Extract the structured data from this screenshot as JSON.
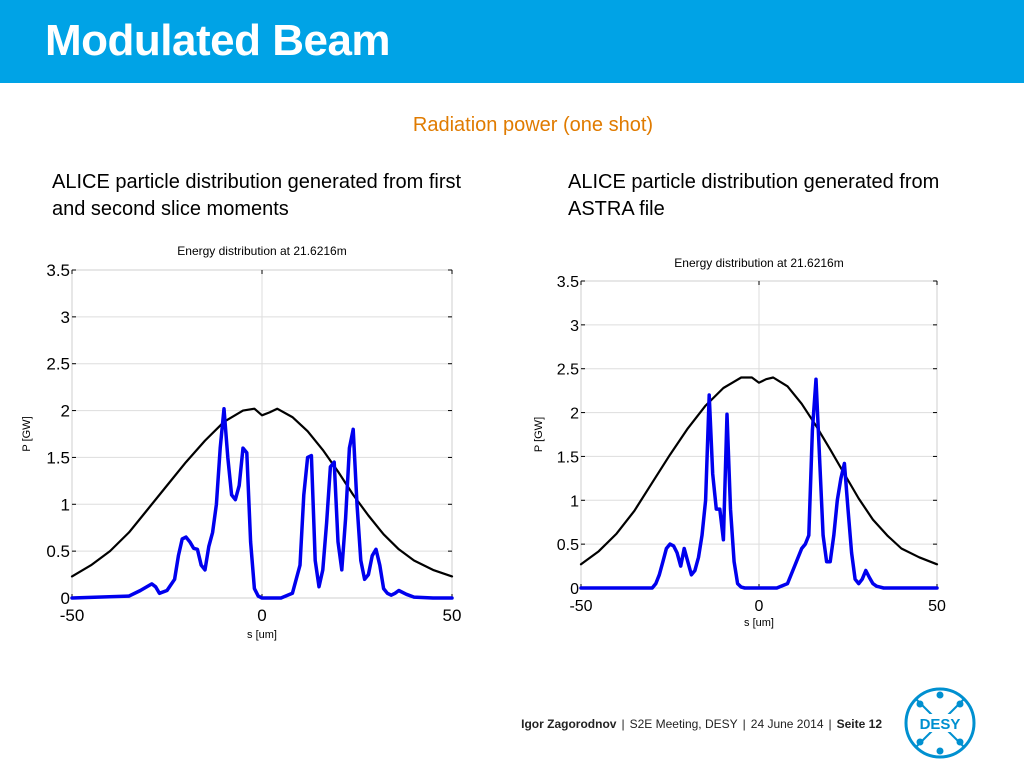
{
  "slide": {
    "title": "Modulated Beam",
    "subtitle": "Radiation power (one shot)",
    "left_caption": "ALICE particle distribution generated from first and second slice moments",
    "right_caption": "ALICE particle distribution generated from ASTRA file"
  },
  "colors": {
    "header": "#00a3e6",
    "subtitle": "#e07b00",
    "envelope": "#000000",
    "power": "#0000ee",
    "logo": "#0090d0"
  },
  "footer": {
    "author": "Igor Zagorodnov",
    "event": "S2E  Meeting, DESY",
    "date": "24 June 2014",
    "page": "Seite 12",
    "separator": "|"
  },
  "logo": {
    "text": "DESY",
    "icon": "desy-logo-icon"
  },
  "chart_data": [
    {
      "type": "line",
      "title": "Energy distribution at 21.6216m",
      "xlabel": "s [um]",
      "ylabel": "P [GW]",
      "xlim": [
        -50,
        50
      ],
      "ylim": [
        0,
        3.5
      ],
      "xticks": [
        "-50",
        "0",
        "50"
      ],
      "yticks": [
        "0",
        "0.5",
        "1",
        "1.5",
        "2",
        "2.5",
        "3",
        "3.5"
      ],
      "grid": true,
      "series": [
        {
          "color": "#000000",
          "x": [
            -50,
            -45,
            -40,
            -35,
            -30,
            -25,
            -20,
            -15,
            -10,
            -5,
            -2,
            0,
            2,
            4,
            8,
            12,
            16,
            20,
            24,
            28,
            32,
            36,
            40,
            45,
            50
          ],
          "y": [
            0.23,
            0.35,
            0.5,
            0.7,
            0.95,
            1.2,
            1.45,
            1.68,
            1.88,
            2.0,
            2.02,
            1.95,
            1.98,
            2.02,
            1.93,
            1.78,
            1.58,
            1.35,
            1.1,
            0.88,
            0.68,
            0.52,
            0.4,
            0.3,
            0.23
          ]
        },
        {
          "color": "#0000ee",
          "x": [
            -50,
            -35,
            -32,
            -29,
            -28,
            -27,
            -25,
            -23,
            -22,
            -21,
            -20,
            -19,
            -18,
            -17,
            -16,
            -15,
            -14,
            -13,
            -12,
            -11,
            -10,
            -9,
            -8,
            -7,
            -6,
            -5,
            -4,
            -3,
            -2,
            -1,
            0,
            1,
            2,
            5,
            8,
            10,
            11,
            12,
            13,
            14,
            15,
            16,
            17,
            18,
            19,
            20,
            21,
            22,
            23,
            24,
            25,
            26,
            27,
            28,
            29,
            30,
            31,
            32,
            33,
            34,
            35,
            36,
            38,
            40,
            45,
            50
          ],
          "y": [
            0,
            0.02,
            0.08,
            0.15,
            0.12,
            0.05,
            0.08,
            0.2,
            0.45,
            0.63,
            0.65,
            0.6,
            0.53,
            0.52,
            0.35,
            0.3,
            0.55,
            0.7,
            1.0,
            1.6,
            2.02,
            1.5,
            1.1,
            1.05,
            1.2,
            1.6,
            1.55,
            0.6,
            0.1,
            0.02,
            0,
            0,
            0,
            0,
            0.05,
            0.35,
            1.1,
            1.5,
            1.52,
            0.4,
            0.12,
            0.3,
            0.8,
            1.4,
            1.45,
            0.6,
            0.3,
            0.85,
            1.6,
            1.8,
            1.0,
            0.4,
            0.2,
            0.25,
            0.45,
            0.52,
            0.35,
            0.1,
            0.05,
            0.03,
            0.05,
            0.08,
            0.04,
            0.01,
            0,
            0
          ]
        }
      ]
    },
    {
      "type": "line",
      "title": "Energy distribution at 21.6216m",
      "xlabel": "s [um]",
      "ylabel": "P [GW]",
      "xlim": [
        -50,
        50
      ],
      "ylim": [
        0,
        3.5
      ],
      "xticks": [
        "-50",
        "0",
        "50"
      ],
      "yticks": [
        "0",
        "0.5",
        "1",
        "1.5",
        "2",
        "2.5",
        "3",
        "3.5"
      ],
      "grid": true,
      "series": [
        {
          "color": "#000000",
          "x": [
            -50,
            -45,
            -40,
            -35,
            -30,
            -25,
            -20,
            -15,
            -10,
            -5,
            -2,
            0,
            2,
            4,
            8,
            12,
            16,
            20,
            24,
            28,
            32,
            36,
            40,
            45,
            50
          ],
          "y": [
            0.27,
            0.42,
            0.62,
            0.88,
            1.2,
            1.52,
            1.82,
            2.08,
            2.28,
            2.4,
            2.4,
            2.34,
            2.38,
            2.4,
            2.3,
            2.1,
            1.85,
            1.58,
            1.3,
            1.02,
            0.78,
            0.6,
            0.45,
            0.35,
            0.27
          ]
        },
        {
          "color": "#0000ee",
          "x": [
            -50,
            -30,
            -29,
            -28,
            -27,
            -26,
            -25,
            -24,
            -23,
            -22,
            -21,
            -20,
            -19,
            -18,
            -17,
            -16,
            -15,
            -14,
            -13,
            -12,
            -11,
            -10,
            -9,
            -8,
            -7,
            -6,
            -5,
            -4,
            -3,
            -2,
            -1,
            0,
            5,
            8,
            10,
            12,
            13,
            14,
            15,
            16,
            17,
            18,
            19,
            20,
            21,
            22,
            23,
            24,
            25,
            26,
            27,
            28,
            29,
            30,
            31,
            32,
            33,
            34,
            35,
            40,
            45,
            50
          ],
          "y": [
            0,
            0,
            0.05,
            0.15,
            0.3,
            0.45,
            0.5,
            0.48,
            0.4,
            0.25,
            0.45,
            0.3,
            0.15,
            0.2,
            0.35,
            0.6,
            1.0,
            2.2,
            1.3,
            0.9,
            0.9,
            0.55,
            1.98,
            0.9,
            0.3,
            0.05,
            0.01,
            0,
            0,
            0,
            0,
            0,
            0,
            0.05,
            0.25,
            0.45,
            0.5,
            0.6,
            1.8,
            2.38,
            1.5,
            0.6,
            0.3,
            0.3,
            0.6,
            1.0,
            1.25,
            1.42,
            0.9,
            0.4,
            0.1,
            0.05,
            0.1,
            0.2,
            0.12,
            0.05,
            0.02,
            0.01,
            0,
            0,
            0,
            0
          ]
        }
      ]
    }
  ]
}
